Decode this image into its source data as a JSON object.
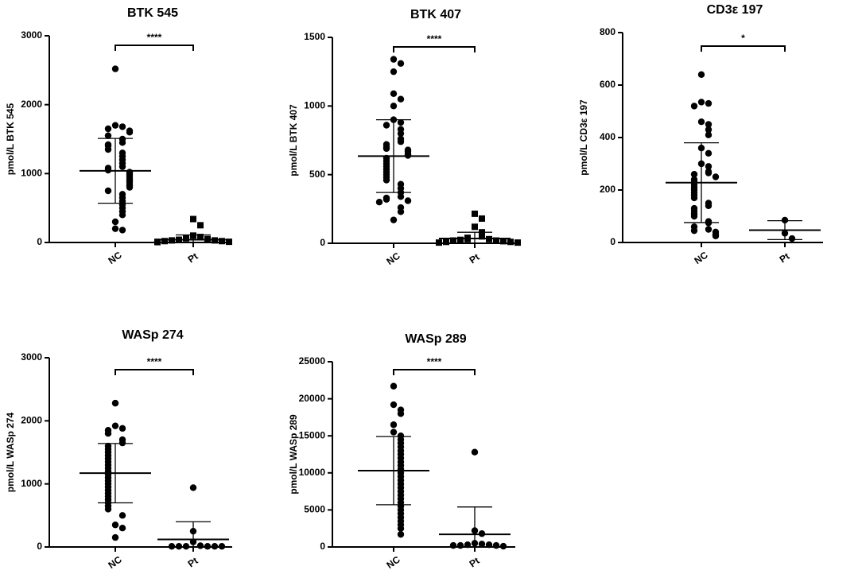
{
  "chart_data": [
    {
      "type": "dotplot",
      "title": "BTK 545",
      "ylabel": "pmol/L BTK 545",
      "categories": [
        "NC",
        "Pt"
      ],
      "annotation": "****",
      "markers": [
        "circle",
        "square"
      ],
      "color": "#000000",
      "values": [
        [
          2520,
          1700,
          1680,
          1650,
          1620,
          1600,
          1550,
          1500,
          1450,
          1420,
          1400,
          1350,
          1300,
          1250,
          1200,
          1150,
          1100,
          1080,
          1050,
          1020,
          1000,
          980,
          950,
          920,
          900,
          880,
          850,
          820,
          800,
          750,
          700,
          650,
          600,
          550,
          500,
          450,
          400,
          300,
          200,
          180
        ],
        [
          340,
          250,
          100,
          80,
          60,
          50,
          40,
          30,
          30,
          20,
          20,
          10,
          10,
          5
        ]
      ],
      "means": [
        1040,
        40
      ],
      "sd": [
        470,
        70
      ],
      "ylim": [
        0,
        3000
      ],
      "yticks": [
        0,
        1000,
        2000,
        3000
      ]
    },
    {
      "type": "dotplot",
      "title": "BTK 407",
      "ylabel": "pmol/L BTK 407",
      "categories": [
        "NC",
        "Pt"
      ],
      "annotation": "****",
      "markers": [
        "circle",
        "square"
      ],
      "color": "#000000",
      "values": [
        [
          1340,
          1310,
          1250,
          1090,
          1050,
          1000,
          900,
          880,
          860,
          830,
          800,
          760,
          740,
          720,
          700,
          690,
          680,
          670,
          650,
          640,
          620,
          600,
          580,
          560,
          540,
          520,
          500,
          480,
          460,
          430,
          400,
          370,
          340,
          330,
          320,
          310,
          300,
          260,
          230,
          170
        ],
        [
          215,
          180,
          120,
          80,
          50,
          40,
          30,
          30,
          25,
          20,
          20,
          15,
          10,
          10,
          5,
          5
        ]
      ],
      "means": [
        635,
        35
      ],
      "sd": [
        265,
        45
      ],
      "ylim": [
        0,
        1500
      ],
      "yticks": [
        0,
        500,
        1000,
        1500
      ]
    },
    {
      "type": "dotplot",
      "title": "CD3ε 197",
      "ylabel": "pmol/L CD3ε 197",
      "categories": [
        "NC",
        "Pt"
      ],
      "annotation": "*",
      "markers": [
        "circle",
        "circle"
      ],
      "color": "#000000",
      "values": [
        [
          640,
          535,
          530,
          520,
          460,
          450,
          430,
          410,
          360,
          340,
          300,
          290,
          270,
          265,
          260,
          250,
          240,
          230,
          220,
          210,
          200,
          190,
          180,
          170,
          150,
          140,
          130,
          120,
          110,
          100,
          80,
          75,
          60,
          50,
          45,
          40,
          30,
          25
        ],
        [
          85,
          35,
          15
        ]
      ],
      "means": [
        228,
        47
      ],
      "sd": [
        152,
        36
      ],
      "ylim": [
        0,
        800
      ],
      "yticks": [
        0,
        200,
        400,
        600,
        800
      ]
    },
    {
      "type": "dotplot",
      "title": "WASp 274",
      "ylabel": "pmol/L  WASp 274",
      "categories": [
        "NC",
        "Pt"
      ],
      "annotation": "****",
      "markers": [
        "circle",
        "circle"
      ],
      "color": "#000000",
      "values": [
        [
          2280,
          1920,
          1880,
          1850,
          1800,
          1700,
          1650,
          1600,
          1550,
          1500,
          1450,
          1400,
          1350,
          1300,
          1250,
          1200,
          1150,
          1100,
          1050,
          1000,
          950,
          900,
          850,
          800,
          750,
          700,
          650,
          600,
          500,
          350,
          300,
          150
        ],
        [
          940,
          250,
          80,
          20,
          10,
          10,
          10,
          10,
          10,
          10
        ]
      ],
      "means": [
        1170,
        120
      ],
      "sd": [
        470,
        280
      ],
      "ylim": [
        0,
        3000
      ],
      "yticks": [
        0,
        1000,
        2000,
        3000
      ]
    },
    {
      "type": "dotplot",
      "title": "WASp 289",
      "ylabel": "pmol/L  WASp 289",
      "categories": [
        "NC",
        "Pt"
      ],
      "annotation": "****",
      "markers": [
        "circle",
        "circle"
      ],
      "color": "#000000",
      "values": [
        [
          21700,
          19200,
          18500,
          18000,
          16500,
          15500,
          15000,
          14500,
          14000,
          13500,
          13000,
          12500,
          12000,
          11500,
          11000,
          10500,
          10000,
          9500,
          9000,
          8500,
          8000,
          7500,
          7000,
          6500,
          6000,
          5500,
          5000,
          4500,
          4000,
          3500,
          3000,
          2500,
          1700
        ],
        [
          12800,
          2200,
          1800,
          500,
          400,
          300,
          300,
          200,
          200,
          200,
          100
        ]
      ],
      "means": [
        10300,
        1700
      ],
      "sd": [
        4600,
        3700
      ],
      "ylim": [
        0,
        25000
      ],
      "yticks": [
        0,
        5000,
        10000,
        15000,
        20000,
        25000
      ]
    }
  ]
}
